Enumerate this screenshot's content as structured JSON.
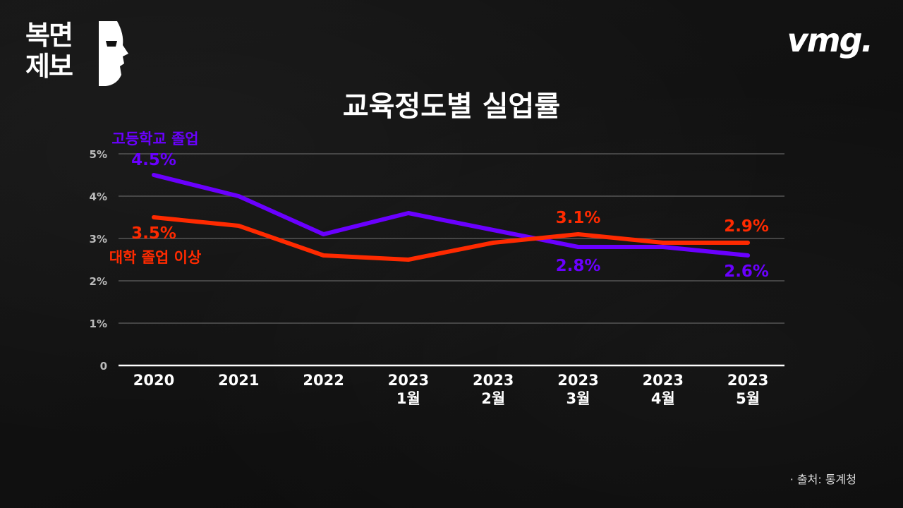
{
  "brand": {
    "left_logo": "복면제보",
    "right_logo": "vmg."
  },
  "title": "교육정도별 실업률",
  "source": "· 출처: 통계청",
  "colors": {
    "high_school": "#6a00ff",
    "college": "#ff2a00",
    "grid": "#555555",
    "axis": "#ffffff"
  },
  "chart_data": {
    "type": "line",
    "title": "교육정도별 실업률",
    "categories": [
      [
        "2020"
      ],
      [
        "2021"
      ],
      [
        "2022"
      ],
      [
        "2023",
        "1월"
      ],
      [
        "2023",
        "2월"
      ],
      [
        "2023",
        "3월"
      ],
      [
        "2023",
        "4월"
      ],
      [
        "2023",
        "5월"
      ]
    ],
    "yticks": [
      "0",
      "1%",
      "2%",
      "3%",
      "4%",
      "5%"
    ],
    "ylim": [
      0,
      5
    ],
    "grid": true,
    "series": [
      {
        "name": "고등학교 졸업",
        "color": "#6a00ff",
        "values": [
          4.5,
          4.0,
          3.1,
          3.6,
          3.2,
          2.8,
          2.8,
          2.6
        ],
        "labels": [
          {
            "index": 0,
            "text": "4.5%"
          },
          {
            "index": 5,
            "text": "2.8%"
          },
          {
            "index": 7,
            "text": "2.6%"
          }
        ]
      },
      {
        "name": "대학 졸업 이상",
        "color": "#ff2a00",
        "values": [
          3.5,
          3.3,
          2.6,
          2.5,
          2.9,
          3.1,
          2.9,
          2.9
        ],
        "labels": [
          {
            "index": 0,
            "text": "3.5%"
          },
          {
            "index": 5,
            "text": "3.1%"
          },
          {
            "index": 7,
            "text": "2.9%"
          }
        ]
      }
    ]
  }
}
